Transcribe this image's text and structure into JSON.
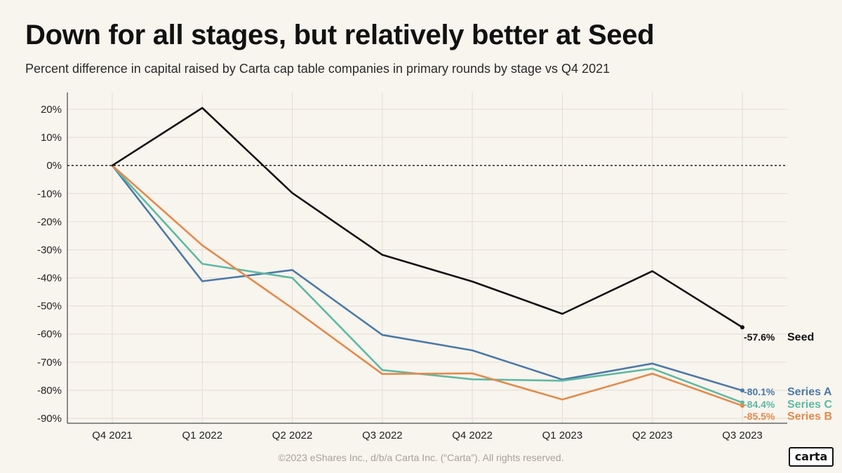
{
  "header": {
    "title": "Down for all stages, but relatively better at Seed",
    "subtitle": "Percent difference in capital raised by Carta cap table companies in primary rounds by stage vs Q4 2021"
  },
  "footer": {
    "copyright": "©2023 eShares Inc., d/b/a Carta Inc. (“Carta”). All rights reserved.",
    "logo": "carta"
  },
  "chart_data": {
    "type": "line",
    "title": "Down for all stages, but relatively better at Seed",
    "subtitle": "Percent difference in capital raised by Carta cap table companies in primary rounds by stage vs Q4 2021",
    "xlabel": "",
    "ylabel": "",
    "categories": [
      "Q4 2021",
      "Q1 2022",
      "Q2 2022",
      "Q3 2022",
      "Q4 2022",
      "Q1 2023",
      "Q2 2023",
      "Q3 2023"
    ],
    "ylim": [
      -90,
      20
    ],
    "yticks": [
      20,
      10,
      0,
      -10,
      -20,
      -30,
      -40,
      -50,
      -60,
      -70,
      -80,
      -90
    ],
    "ytick_labels": [
      "20%",
      "10%",
      "0%",
      "-10%",
      "-20%",
      "-30%",
      "-40%",
      "-50%",
      "-60%",
      "-70%",
      "-80%",
      "-90%"
    ],
    "grid": true,
    "zero_line": "dashed",
    "series": [
      {
        "name": "Seed",
        "color": "#111111",
        "values": [
          0,
          20.5,
          -9.8,
          -31.8,
          -41.3,
          -52.8,
          -37.6,
          -57.6
        ],
        "end_label": "-57.6%"
      },
      {
        "name": "Series A",
        "color": "#4a7aa6",
        "values": [
          0,
          -41.2,
          -37.2,
          -60.3,
          -65.8,
          -76.2,
          -70.5,
          -80.1
        ],
        "end_label": "-80.1%"
      },
      {
        "name": "Series C",
        "color": "#5fb9a3",
        "values": [
          0,
          -35.0,
          -40.0,
          -72.8,
          -76.1,
          -76.6,
          -72.3,
          -84.4
        ],
        "end_label": "-84.4%"
      },
      {
        "name": "Series B",
        "color": "#e38a4b",
        "values": [
          0,
          -28.4,
          -50.8,
          -74.2,
          -74.0,
          -83.3,
          -74.1,
          -85.5
        ],
        "end_label": "-85.5%"
      }
    ]
  }
}
